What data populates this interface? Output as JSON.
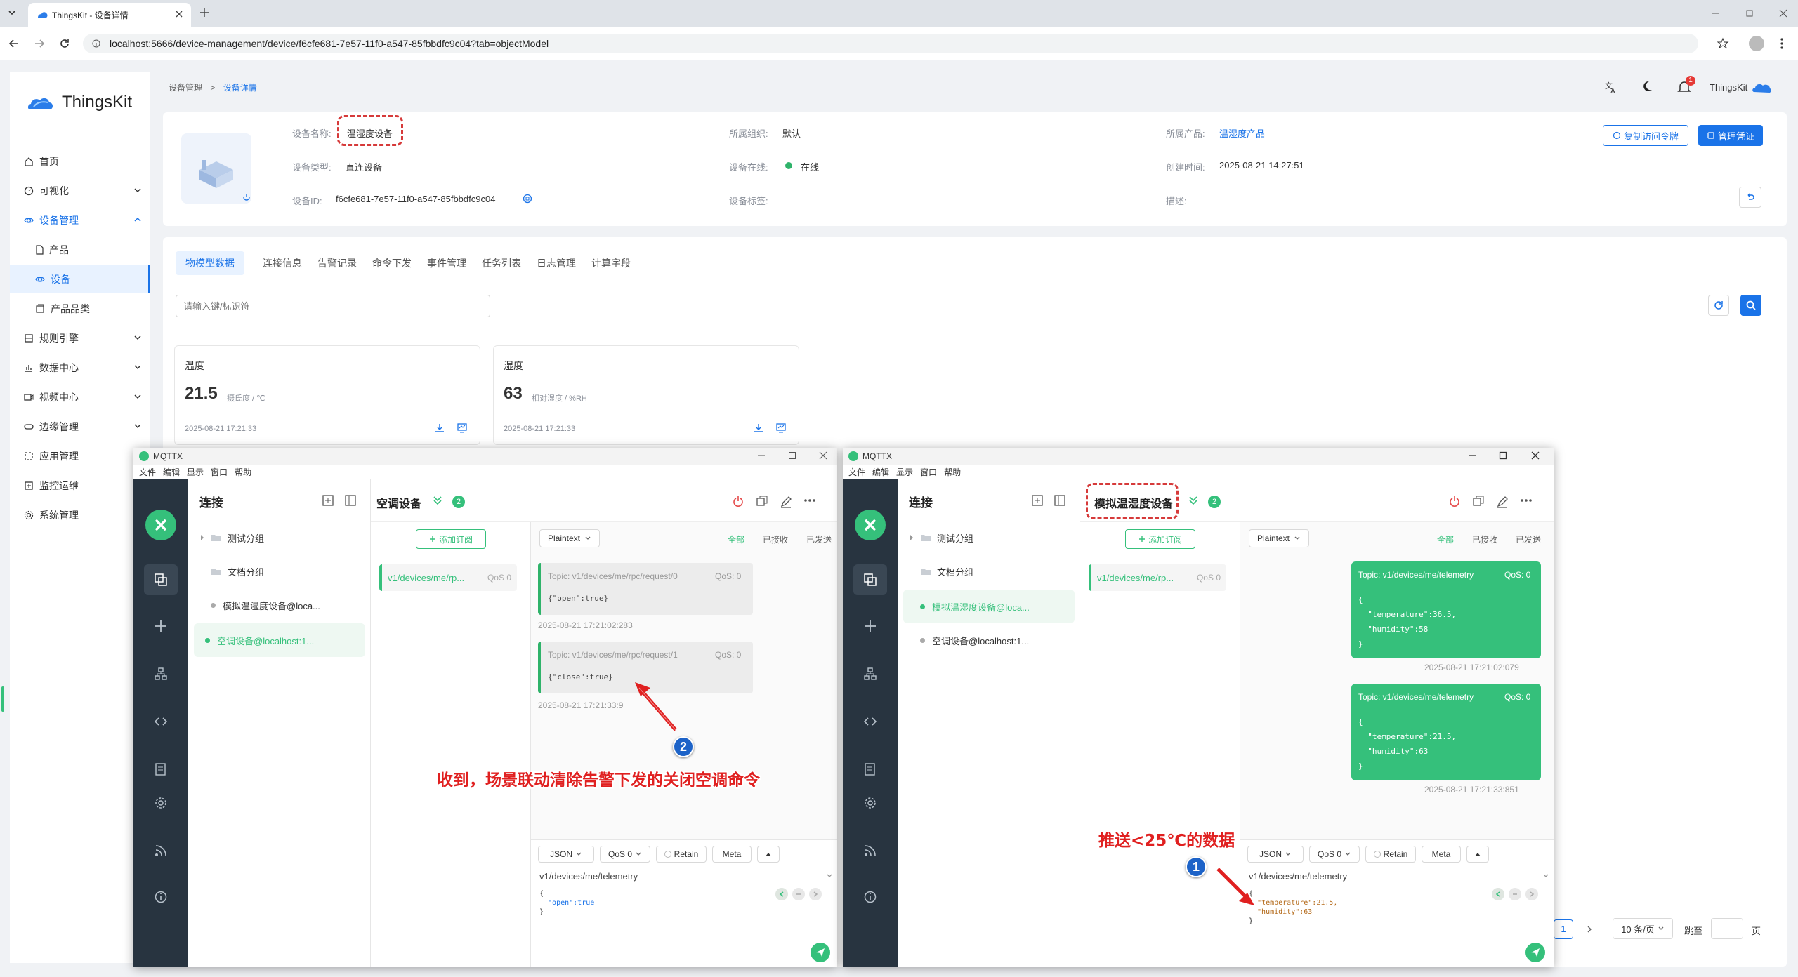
{
  "browser": {
    "tab_title": "ThingsKit - 设备详情",
    "url": "localhost:5666/device-management/device/f6cfe681-7e57-11f0-a547-85fbbdfc9c04?tab=objectModel"
  },
  "app": {
    "logo_text": "ThingsKit",
    "user_name": "ThingsKit",
    "notification_count": "1"
  },
  "sidebar": {
    "items": [
      {
        "label": "首页"
      },
      {
        "label": "可视化"
      },
      {
        "label": "设备管理"
      },
      {
        "label": "产品"
      },
      {
        "label": "设备"
      },
      {
        "label": "产品品类"
      },
      {
        "label": "规则引擎"
      },
      {
        "label": "数据中心"
      },
      {
        "label": "视频中心"
      },
      {
        "label": "边缘管理"
      },
      {
        "label": "应用管理"
      },
      {
        "label": "监控运维"
      },
      {
        "label": "系统管理"
      }
    ]
  },
  "breadcrumb": {
    "parent": "设备管理",
    "current": "设备详情"
  },
  "device": {
    "name_label": "设备名称:",
    "name": "温湿度设备",
    "type_label": "设备类型:",
    "type": "直连设备",
    "id_label": "设备ID:",
    "id": "f6cfe681-7e57-11f0-a547-85fbbdfc9c04",
    "org_label": "所属组织:",
    "org": "默认",
    "online_label": "设备在线:",
    "online": "在线",
    "tag_label": "设备标签:",
    "product_label": "所属产品:",
    "product": "温湿度产品",
    "created_label": "创建时间:",
    "created": "2025-08-21 14:27:51",
    "desc_label": "描述:",
    "copy_token_button": "复制访问令牌",
    "manage_cred_button": "管理凭证"
  },
  "tabs": [
    "物模型数据",
    "连接信息",
    "告警记录",
    "命令下发",
    "事件管理",
    "任务列表",
    "日志管理",
    "计算字段"
  ],
  "search": {
    "placeholder": "请输入键/标识符"
  },
  "telemetry": [
    {
      "name": "温度",
      "value": "21.5",
      "unit": "摄氏度 / ℃",
      "time": "2025-08-21 17:21:33"
    },
    {
      "name": "湿度",
      "value": "63",
      "unit": "相对湿度 / %RH",
      "time": "2025-08-21 17:21:33"
    }
  ],
  "pagination": {
    "page": "1",
    "page_size": "10 条/页",
    "goto_label": "跳至",
    "page_suffix": "页"
  },
  "mqttx_menu": [
    "文件",
    "编辑",
    "显示",
    "窗口",
    "帮助"
  ],
  "mqttx_left": {
    "title": "MQTTX",
    "connections_title": "连接",
    "conn_items": [
      "测试分组",
      "文档分组",
      "模拟温湿度设备@loca...",
      "空调设备@localhost:1..."
    ],
    "active_connection": "空调设备",
    "sub_count": "2",
    "add_sub_button": "添加订阅",
    "subscription": "v1/devices/me/rp...",
    "subscription_qos": "QoS 0",
    "format": "Plaintext",
    "filter_all": "全部",
    "filter_received": "已接收",
    "filter_sent": "已发送",
    "messages": [
      {
        "topic": "Topic: v1/devices/me/rpc/request/0",
        "qos": "QoS: 0",
        "payload": "{\"open\":true}",
        "time": "2025-08-21 17:21:02:283"
      },
      {
        "topic": "Topic: v1/devices/me/rpc/request/1",
        "qos": "QoS: 0",
        "payload": "{\"close\":true}",
        "time": "2025-08-21 17:21:33:9"
      }
    ],
    "pub": {
      "payload_type": "JSON",
      "qos": "QoS 0",
      "retain": "Retain",
      "meta": "Meta",
      "topic": "v1/devices/me/telemetry",
      "line1": "{",
      "line2": "  \"open\":true",
      "line3": "}"
    }
  },
  "mqttx_right": {
    "title": "MQTTX",
    "connections_title": "连接",
    "conn_items": [
      "测试分组",
      "文档分组",
      "模拟温湿度设备@loca...",
      "空调设备@localhost:1..."
    ],
    "active_connection": "模拟温湿度设备",
    "sub_count": "2",
    "add_sub_button": "添加订阅",
    "subscription": "v1/devices/me/rp...",
    "subscription_qos": "QoS 0",
    "format": "Plaintext",
    "filter_all": "全部",
    "filter_received": "已接收",
    "filter_sent": "已发送",
    "messages": [
      {
        "topic": "Topic: v1/devices/me/telemetry",
        "qos": "QoS: 0",
        "l1": "{",
        "l2": "  \"temperature\":36.5,",
        "l3": "  \"humidity\":58",
        "l4": "}",
        "time": "2025-08-21 17:21:02:079"
      },
      {
        "topic": "Topic: v1/devices/me/telemetry",
        "qos": "QoS: 0",
        "l1": "{",
        "l2": "  \"temperature\":21.5,",
        "l3": "  \"humidity\":63",
        "l4": "}",
        "time": "2025-08-21 17:21:33:851"
      }
    ],
    "pub": {
      "payload_type": "JSON",
      "qos": "QoS 0",
      "retain": "Retain",
      "meta": "Meta",
      "topic": "v1/devices/me/telemetry",
      "line1": "{",
      "line2": "  \"temperature\":21.5,",
      "line3": "  \"humidity\":63",
      "line4": "}"
    }
  },
  "annotations": {
    "left_text": "收到，场景联动清除告警下发的关闭空调命令",
    "left_badge": "2",
    "right_text": "推送<25℃的数据",
    "right_badge": "1"
  },
  "colors": {
    "primary": "#1a73e8",
    "mqttx_green": "#35c07b",
    "annotation_red": "#e02020"
  }
}
